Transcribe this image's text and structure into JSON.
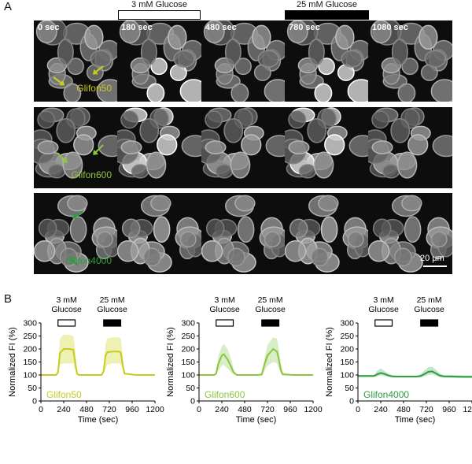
{
  "panelA": {
    "letter": "A",
    "stimuli": [
      {
        "label": "3 mM Glucose",
        "fill": "#ffffff"
      },
      {
        "label": "25 mM Glucose",
        "fill": "#000000"
      }
    ],
    "timepoints": [
      "0 sec",
      "180 sec",
      "480 sec",
      "780 sec",
      "1080 sec"
    ],
    "rows": [
      {
        "probe": "Glifon50",
        "color": "#c8cc1e"
      },
      {
        "probe": "Glifon600",
        "color": "#8cc63f"
      },
      {
        "probe": "Glifon4000",
        "color": "#2e9e3e"
      }
    ],
    "scalebar": "20 μm"
  },
  "panelB": {
    "letter": "B",
    "ylabel": "Normalized FI (%)",
    "xlabel": "Time (sec)",
    "stim1": [
      "3 mM",
      "Glucose"
    ],
    "stim2": [
      "25 mM",
      "Glucose"
    ]
  },
  "chart_data": [
    {
      "type": "line",
      "series_name": "Glifon50",
      "color": "#c8cc1e",
      "band_color": "#eef0b4",
      "xlabel": "Time (sec)",
      "ylabel": "Normalized FI (%)",
      "xlim": [
        0,
        1200
      ],
      "ylim": [
        0,
        300
      ],
      "xticks": [
        0,
        240,
        480,
        720,
        960,
        1200
      ],
      "yticks": [
        0,
        50,
        100,
        150,
        200,
        250,
        300
      ],
      "stimuli": [
        {
          "label": "3 mM Glucose",
          "start": 180,
          "end": 360,
          "fill": "white"
        },
        {
          "label": "25 mM Glucose",
          "start": 660,
          "end": 840,
          "fill": "black"
        }
      ],
      "x": [
        0,
        160,
        180,
        200,
        240,
        300,
        340,
        360,
        380,
        400,
        500,
        620,
        640,
        660,
        680,
        700,
        760,
        820,
        840,
        860,
        880,
        1000,
        1200
      ],
      "y": [
        100,
        100,
        110,
        185,
        200,
        200,
        198,
        150,
        105,
        100,
        100,
        100,
        100,
        115,
        175,
        188,
        190,
        190,
        185,
        140,
        105,
        100,
        100
      ],
      "lower": [
        100,
        100,
        105,
        140,
        145,
        145,
        145,
        120,
        102,
        100,
        100,
        100,
        100,
        105,
        125,
        140,
        145,
        145,
        140,
        120,
        102,
        100,
        100
      ],
      "upper": [
        100,
        100,
        130,
        240,
        255,
        255,
        250,
        200,
        110,
        100,
        100,
        100,
        100,
        140,
        220,
        240,
        245,
        245,
        240,
        180,
        110,
        100,
        100
      ]
    },
    {
      "type": "line",
      "series_name": "Glifon600",
      "color": "#8cc63f",
      "band_color": "#d9edc6",
      "xlabel": "Time (sec)",
      "ylabel": "Normalized FI (%)",
      "xlim": [
        0,
        1200
      ],
      "ylim": [
        0,
        300
      ],
      "xticks": [
        0,
        240,
        480,
        720,
        960,
        1200
      ],
      "yticks": [
        0,
        50,
        100,
        150,
        200,
        250,
        300
      ],
      "stimuli": [
        {
          "label": "3 mM Glucose",
          "start": 180,
          "end": 360,
          "fill": "white"
        },
        {
          "label": "25 mM Glucose",
          "start": 660,
          "end": 840,
          "fill": "black"
        }
      ],
      "x": [
        0,
        160,
        180,
        200,
        240,
        260,
        300,
        340,
        360,
        380,
        400,
        500,
        620,
        660,
        680,
        720,
        780,
        820,
        840,
        860,
        880,
        1000,
        1200
      ],
      "y": [
        100,
        100,
        105,
        140,
        175,
        180,
        160,
        130,
        112,
        105,
        100,
        100,
        100,
        102,
        130,
        175,
        200,
        190,
        160,
        120,
        102,
        100,
        100
      ],
      "lower": [
        100,
        100,
        102,
        115,
        135,
        140,
        125,
        110,
        103,
        100,
        100,
        100,
        100,
        100,
        112,
        135,
        150,
        145,
        125,
        105,
        100,
        100,
        100
      ],
      "upper": [
        100,
        100,
        112,
        170,
        210,
        220,
        200,
        160,
        125,
        110,
        100,
        100,
        100,
        105,
        150,
        215,
        245,
        240,
        200,
        145,
        110,
        100,
        100
      ]
    },
    {
      "type": "line",
      "series_name": "Glifon4000",
      "color": "#2e9e3e",
      "band_color": "#c5e6cb",
      "xlabel": "Time (sec)",
      "ylabel": "Normalized FI (%)",
      "xlim": [
        0,
        1200
      ],
      "ylim": [
        0,
        300
      ],
      "xticks": [
        0,
        240,
        480,
        720,
        960,
        1200
      ],
      "yticks": [
        0,
        50,
        100,
        150,
        200,
        250,
        300
      ],
      "stimuli": [
        {
          "label": "3 mM Glucose",
          "start": 180,
          "end": 360,
          "fill": "white"
        },
        {
          "label": "25 mM Glucose",
          "start": 660,
          "end": 840,
          "fill": "black"
        }
      ],
      "x": [
        0,
        160,
        180,
        200,
        240,
        280,
        320,
        360,
        400,
        500,
        620,
        660,
        700,
        740,
        780,
        820,
        860,
        900,
        1000,
        1100,
        1200
      ],
      "y": [
        96,
        96,
        98,
        102,
        108,
        104,
        98,
        95,
        94,
        94,
        94,
        96,
        104,
        112,
        114,
        106,
        98,
        95,
        94,
        93,
        93
      ],
      "lower": [
        92,
        92,
        93,
        95,
        98,
        96,
        93,
        91,
        90,
        90,
        90,
        91,
        95,
        100,
        102,
        97,
        92,
        90,
        89,
        88,
        88
      ],
      "upper": [
        100,
        100,
        104,
        115,
        125,
        115,
        105,
        99,
        98,
        98,
        98,
        103,
        118,
        130,
        132,
        120,
        106,
        100,
        99,
        98,
        98
      ]
    }
  ]
}
